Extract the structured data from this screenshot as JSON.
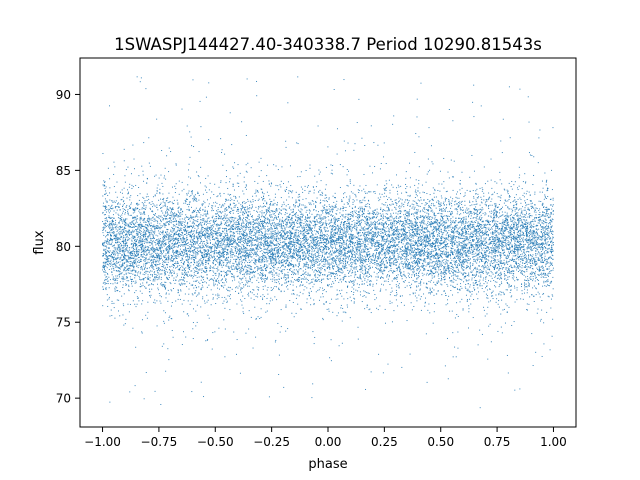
{
  "chart_data": {
    "type": "scatter",
    "title": "1SWASPJ144427.40-340338.7 Period 10290.81543s",
    "xlabel": "phase",
    "ylabel": "flux",
    "xlim": [
      -1.1,
      1.1
    ],
    "ylim": [
      68.1,
      92.4
    ],
    "xticks": [
      -1.0,
      -0.75,
      -0.5,
      -0.25,
      0.0,
      0.25,
      0.5,
      0.75,
      1.0
    ],
    "xtick_labels": [
      "−1.00",
      "−0.75",
      "−0.50",
      "−0.25",
      "0.00",
      "0.25",
      "0.50",
      "0.75",
      "1.00"
    ],
    "yticks": [
      70,
      75,
      80,
      85,
      90
    ],
    "ytick_labels": [
      "70",
      "75",
      "80",
      "85",
      "90"
    ],
    "grid": false,
    "legend": "none",
    "marker_color": "#1f77b4",
    "series": [
      {
        "x_range": [
          -1.0,
          1.0
        ],
        "flux_center": 80.2,
        "flux_core_range": [
          77.0,
          83.5
        ],
        "flux_min": 69.3,
        "flux_max": 91.2,
        "density_profile": "dense band at 77-83.5, sparser wings to 73 and 87, sparse outliers to 69.3 and 91.2",
        "points": [
          [
            -1.0,
            80.1
          ],
          [
            -0.9,
            80.4
          ],
          [
            -0.8,
            79.8
          ],
          [
            -0.7,
            80.3
          ],
          [
            -0.6,
            80.0
          ],
          [
            -0.5,
            80.2
          ],
          [
            -0.4,
            80.5
          ],
          [
            -0.3,
            80.1
          ],
          [
            -0.2,
            80.0
          ],
          [
            -0.1,
            80.3
          ],
          [
            0.0,
            80.2
          ],
          [
            0.1,
            80.1
          ],
          [
            0.2,
            80.4
          ],
          [
            0.3,
            80.0
          ],
          [
            0.4,
            80.3
          ],
          [
            0.5,
            80.2
          ],
          [
            0.6,
            79.9
          ],
          [
            0.7,
            80.2
          ],
          [
            0.8,
            80.1
          ],
          [
            0.9,
            80.0
          ],
          [
            1.0,
            80.1
          ]
        ]
      }
    ]
  }
}
